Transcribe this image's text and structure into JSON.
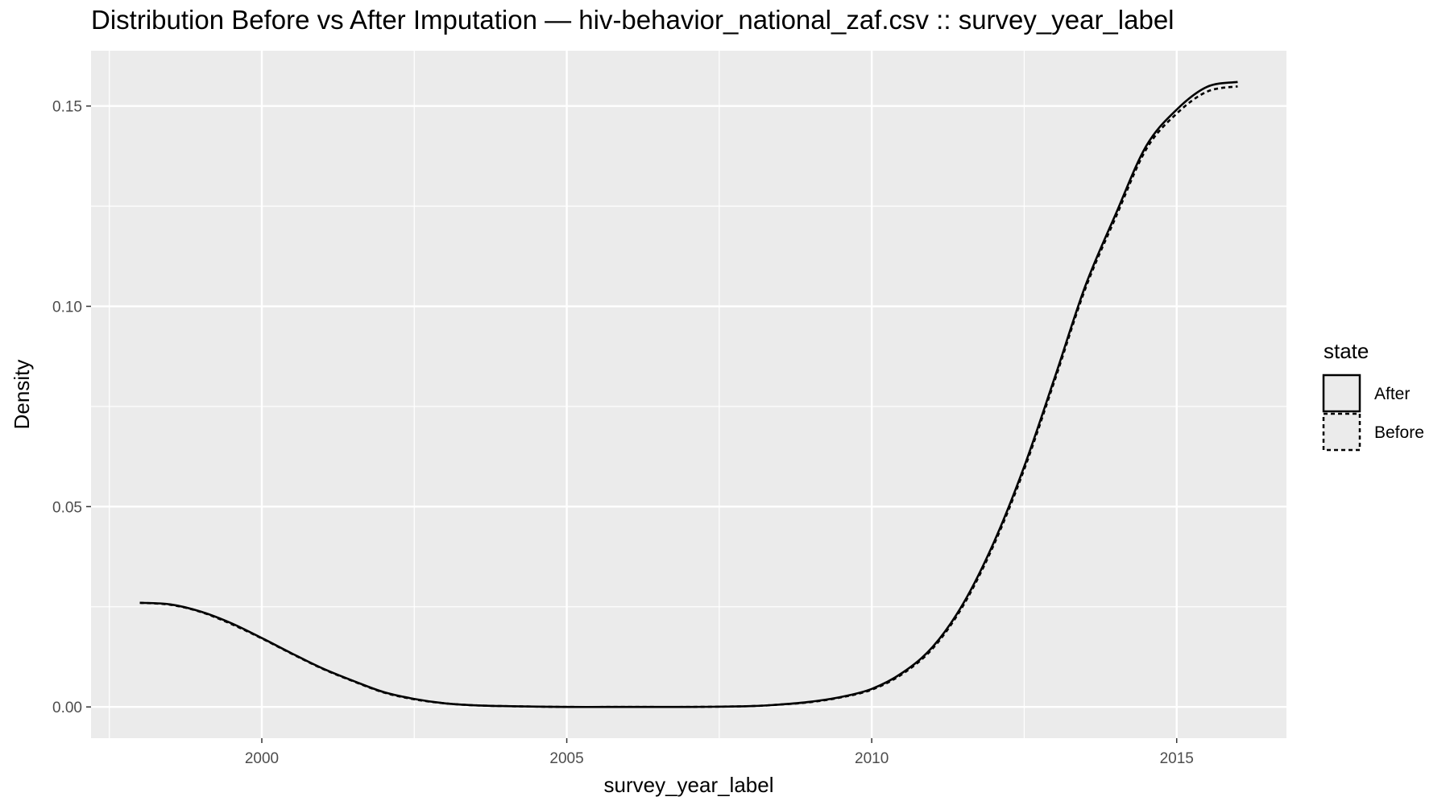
{
  "chart_data": {
    "type": "line",
    "title": "Distribution Before vs After Imputation — hiv-behavior_national_zaf.csv :: survey_year_label",
    "xlabel": "survey_year_label",
    "ylabel": "Density",
    "xlim": [
      1997.2,
      2016.8
    ],
    "ylim": [
      -0.0078,
      0.1638
    ],
    "x_ticks": [
      2000,
      2005,
      2010,
      2015
    ],
    "x_tick_labels": [
      "2000",
      "2005",
      "2010",
      "2015"
    ],
    "y_ticks": [
      0.0,
      0.05,
      0.1,
      0.15
    ],
    "y_tick_labels": [
      "0.00",
      "0.05",
      "0.10",
      "0.15"
    ],
    "grid": true,
    "legend": {
      "title": "state",
      "position": "right"
    },
    "series": [
      {
        "name": "After",
        "line_style": "solid",
        "x": [
          1998,
          1998.5,
          1999,
          1999.5,
          2000,
          2000.5,
          2001,
          2001.5,
          2002,
          2002.5,
          2003,
          2003.5,
          2004,
          2005,
          2006,
          2007,
          2008,
          2008.5,
          2009,
          2009.5,
          2010,
          2010.5,
          2011,
          2011.5,
          2012,
          2012.5,
          2013,
          2013.5,
          2014,
          2014.5,
          2015,
          2015.5,
          2016
        ],
        "y": [
          0.026,
          0.0256,
          0.0238,
          0.0209,
          0.0172,
          0.0133,
          0.0096,
          0.0065,
          0.0037,
          0.002,
          0.0009,
          0.0004,
          0.0002,
          0.0,
          0.0,
          0.0,
          0.0002,
          0.0006,
          0.0013,
          0.0025,
          0.0045,
          0.0085,
          0.015,
          0.0258,
          0.041,
          0.06,
          0.0822,
          0.105,
          0.123,
          0.14,
          0.1491,
          0.1548,
          0.156
        ]
      },
      {
        "name": "Before",
        "line_style": "dashed",
        "x": [
          1998,
          1998.5,
          1999,
          1999.5,
          2000,
          2000.5,
          2001,
          2001.5,
          2002,
          2002.5,
          2003,
          2003.5,
          2004,
          2005,
          2006,
          2007,
          2008,
          2008.5,
          2009,
          2009.5,
          2010,
          2010.5,
          2011,
          2011.5,
          2012,
          2012.5,
          2013,
          2013.5,
          2014,
          2014.5,
          2015,
          2015.5,
          2016
        ],
        "y": [
          0.026,
          0.0255,
          0.0237,
          0.0207,
          0.0171,
          0.0132,
          0.0095,
          0.0064,
          0.0036,
          0.0019,
          0.0009,
          0.0004,
          0.0002,
          0.0,
          0.0,
          0.0,
          0.0002,
          0.0006,
          0.0012,
          0.0024,
          0.0043,
          0.0082,
          0.0146,
          0.0253,
          0.0404,
          0.0593,
          0.0815,
          0.1043,
          0.1222,
          0.1392,
          0.1481,
          0.1536,
          0.1549
        ]
      }
    ]
  },
  "colors": {
    "panel_background": "#ebebeb",
    "grid_major": "#ffffff",
    "line": "#000000",
    "tick_text": "#4d4d4d"
  }
}
